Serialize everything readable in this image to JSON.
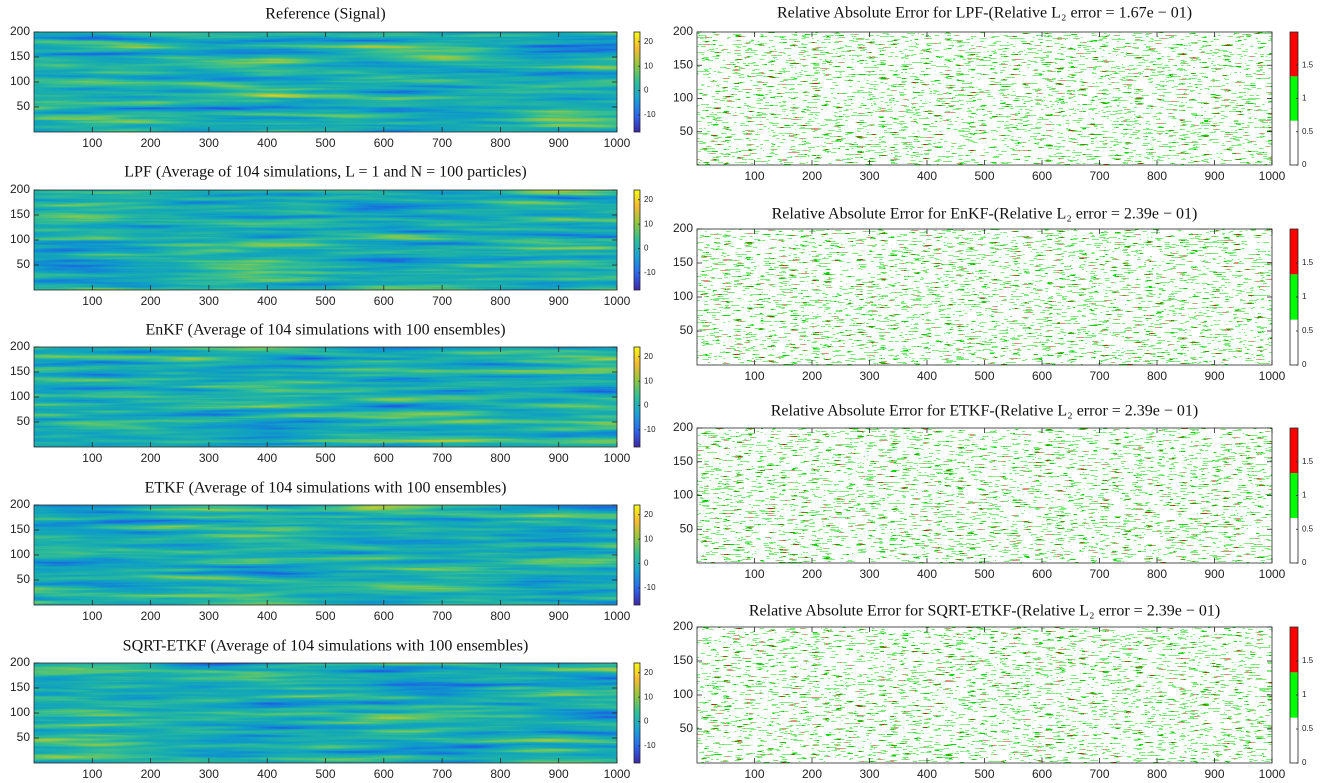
{
  "chart_data": [
    {
      "type": "heatmap",
      "title": "Reference (Signal)",
      "xlim": [
        0,
        1000
      ],
      "ylim": [
        0,
        200
      ],
      "xticks": [
        100,
        200,
        300,
        400,
        500,
        600,
        700,
        800,
        900,
        1000
      ],
      "yticks": [
        50,
        100,
        150,
        200
      ],
      "colorbar": {
        "lim": [
          -17,
          24
        ],
        "ticks": [
          -10,
          0,
          10,
          20
        ],
        "colors": [
          "#3e26a8",
          "#2d67ef",
          "#1aa2d8",
          "#2ebf99",
          "#8fc83f",
          "#f5b932",
          "#f9fb15"
        ]
      }
    },
    {
      "type": "heatmap",
      "title": "LPF (Average of 104 simulations, L = 1 and N = 100 particles)",
      "xlim": [
        0,
        1000
      ],
      "ylim": [
        0,
        200
      ],
      "xticks": [
        100,
        200,
        300,
        400,
        500,
        600,
        700,
        800,
        900,
        1000
      ],
      "yticks": [
        50,
        100,
        150,
        200
      ],
      "colorbar": {
        "lim": [
          -17,
          24
        ],
        "ticks": [
          -10,
          0,
          10,
          20
        ],
        "colors": [
          "#3e26a8",
          "#2d67ef",
          "#1aa2d8",
          "#2ebf99",
          "#8fc83f",
          "#f5b932",
          "#f9fb15"
        ]
      }
    },
    {
      "type": "heatmap",
      "title": "EnKF (Average of 104 simulations with 100 ensembles)",
      "xlim": [
        0,
        1000
      ],
      "ylim": [
        0,
        200
      ],
      "xticks": [
        100,
        200,
        300,
        400,
        500,
        600,
        700,
        800,
        900,
        1000
      ],
      "yticks": [
        50,
        100,
        150,
        200
      ],
      "colorbar": {
        "lim": [
          -17,
          24
        ],
        "ticks": [
          -10,
          0,
          10,
          20
        ],
        "colors": [
          "#3e26a8",
          "#2d67ef",
          "#1aa2d8",
          "#2ebf99",
          "#8fc83f",
          "#f5b932",
          "#f9fb15"
        ]
      }
    },
    {
      "type": "heatmap",
      "title": "ETKF (Average of 104 simulations with 100 ensembles)",
      "xlim": [
        0,
        1000
      ],
      "ylim": [
        0,
        200
      ],
      "xticks": [
        100,
        200,
        300,
        400,
        500,
        600,
        700,
        800,
        900,
        1000
      ],
      "yticks": [
        50,
        100,
        150,
        200
      ],
      "colorbar": {
        "lim": [
          -17,
          24
        ],
        "ticks": [
          -10,
          0,
          10,
          20
        ],
        "colors": [
          "#3e26a8",
          "#2d67ef",
          "#1aa2d8",
          "#2ebf99",
          "#8fc83f",
          "#f5b932",
          "#f9fb15"
        ]
      }
    },
    {
      "type": "heatmap",
      "title": "SQRT-ETKF (Average of 104 simulations with 100 ensembles)",
      "xlim": [
        0,
        1000
      ],
      "ylim": [
        0,
        200
      ],
      "xticks": [
        100,
        200,
        300,
        400,
        500,
        600,
        700,
        800,
        900,
        1000
      ],
      "yticks": [
        50,
        100,
        150,
        200
      ],
      "colorbar": {
        "lim": [
          -17,
          24
        ],
        "ticks": [
          -10,
          0,
          10,
          20
        ],
        "colors": [
          "#3e26a8",
          "#2d67ef",
          "#1aa2d8",
          "#2ebf99",
          "#8fc83f",
          "#f5b932",
          "#f9fb15"
        ]
      }
    },
    {
      "type": "error-map",
      "title": "Relative Absolute Error for LPF-(Relative L₂ error = 1.67e − 01)",
      "xlim": [
        0,
        1000
      ],
      "ylim": [
        0,
        200
      ],
      "xticks": [
        100,
        200,
        300,
        400,
        500,
        600,
        700,
        800,
        900,
        1000
      ],
      "yticks": [
        50,
        100,
        150,
        200
      ],
      "colorbar": {
        "lim": [
          0,
          2
        ],
        "ticks": [
          0,
          0.5,
          1,
          1.5
        ],
        "colors": [
          "#ffffff",
          "#00ff00",
          "#ff0000"
        ]
      }
    },
    {
      "type": "error-map",
      "title": "Relative Absolute Error for EnKF-(Relative L₂ error = 2.39e − 01)",
      "xlim": [
        0,
        1000
      ],
      "ylim": [
        0,
        200
      ],
      "xticks": [
        100,
        200,
        300,
        400,
        500,
        600,
        700,
        800,
        900,
        1000
      ],
      "yticks": [
        50,
        100,
        150,
        200
      ],
      "colorbar": {
        "lim": [
          0,
          2
        ],
        "ticks": [
          0,
          0.5,
          1,
          1.5
        ],
        "colors": [
          "#ffffff",
          "#00ff00",
          "#ff0000"
        ]
      }
    },
    {
      "type": "error-map",
      "title": "Relative Absolute Error for ETKF-(Relative L₂ error = 2.39e − 01)",
      "xlim": [
        0,
        1000
      ],
      "ylim": [
        0,
        200
      ],
      "xticks": [
        100,
        200,
        300,
        400,
        500,
        600,
        700,
        800,
        900,
        1000
      ],
      "yticks": [
        50,
        100,
        150,
        200
      ],
      "colorbar": {
        "lim": [
          0,
          2
        ],
        "ticks": [
          0,
          0.5,
          1,
          1.5
        ],
        "colors": [
          "#ffffff",
          "#00ff00",
          "#ff0000"
        ]
      }
    },
    {
      "type": "error-map",
      "title": "Relative Absolute Error for SQRT-ETKF-(Relative L₂ error = 2.39e − 01)",
      "xlim": [
        0,
        1000
      ],
      "ylim": [
        0,
        200
      ],
      "xticks": [
        100,
        200,
        300,
        400,
        500,
        600,
        700,
        800,
        900,
        1000
      ],
      "yticks": [
        50,
        100,
        150,
        200
      ],
      "colorbar": {
        "lim": [
          0,
          2
        ],
        "ticks": [
          0,
          0.5,
          1,
          1.5
        ],
        "colors": [
          "#ffffff",
          "#00ff00",
          "#ff0000"
        ]
      }
    }
  ]
}
